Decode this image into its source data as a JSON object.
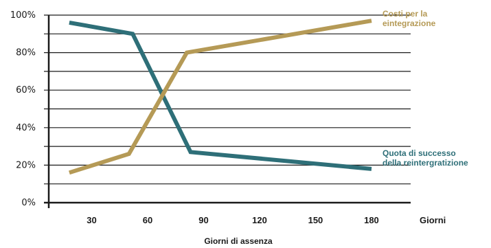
{
  "chart_data": {
    "type": "line",
    "xlabel": "Giorni di assenza",
    "xunit_label": "Giorni",
    "x_ticks": [
      30,
      60,
      90,
      120,
      150,
      180
    ],
    "x_range": [
      7,
      201
    ],
    "ylim": [
      0,
      100
    ],
    "y_tick_labels": [
      "0%",
      "20%",
      "40%",
      "60%",
      "80%",
      "100%"
    ],
    "grid": true,
    "series": [
      {
        "name": "Quota di successo della reintergratizione",
        "label_lines": [
          "Quota di successo",
          "della reintergratizione"
        ],
        "color": "#2e6f78",
        "x": [
          18,
          52,
          83,
          180
        ],
        "y": [
          96,
          90,
          27,
          18
        ]
      },
      {
        "name": "Costi per la eintegrazione",
        "label_lines": [
          "Costi per la",
          "eintegrazione"
        ],
        "color": "#b59a56",
        "x": [
          18,
          50,
          81,
          180
        ],
        "y": [
          16,
          26,
          80,
          97
        ]
      }
    ]
  }
}
